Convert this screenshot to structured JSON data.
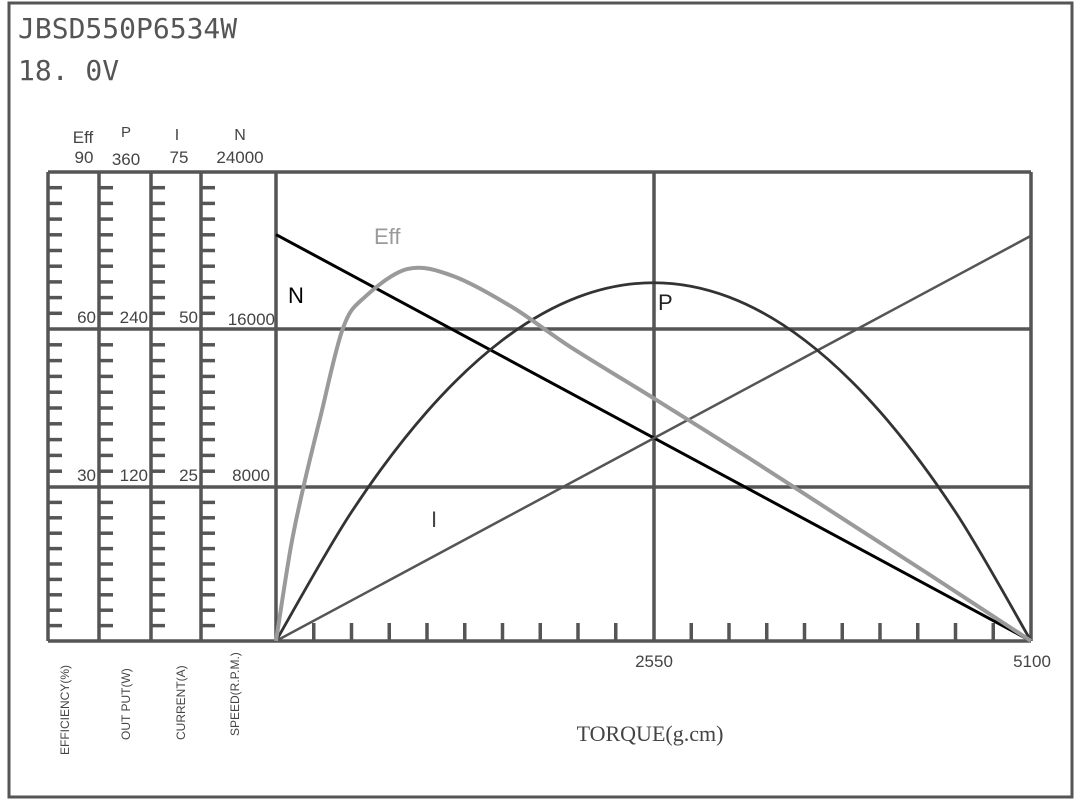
{
  "header": {
    "model": "JBSD550P6534W",
    "voltage": "18. 0V"
  },
  "chart_data": {
    "type": "line",
    "xlabel": "TORQUE(g.cm)",
    "xlim": [
      0,
      5100
    ],
    "x_ticks": [
      "2550",
      "5100"
    ],
    "grid": true,
    "axes": [
      {
        "id": "eff",
        "short": "Eff",
        "label": "EFFICIENCY(%)",
        "max": "90",
        "ticks": [
          "60",
          "30"
        ],
        "range": [
          0,
          90
        ]
      },
      {
        "id": "p",
        "short": "P",
        "label": "OUT PUT(W)",
        "max": "360",
        "ticks": [
          "240",
          "120"
        ],
        "range": [
          0,
          360
        ]
      },
      {
        "id": "i",
        "short": "I",
        "label": "CURRENT(A)",
        "max": "75",
        "ticks": [
          "50",
          "25"
        ],
        "range": [
          0,
          75
        ]
      },
      {
        "id": "n",
        "short": "N",
        "label": "SPEED(R.P.M.)",
        "max": "24000",
        "ticks": [
          "16000",
          "8000"
        ],
        "range": [
          0,
          24000
        ]
      }
    ],
    "series": [
      {
        "name": "N",
        "axis": "n",
        "color": "#000000",
        "x": [
          0,
          5100
        ],
        "y": [
          20800,
          0
        ]
      },
      {
        "name": "I",
        "axis": "i",
        "color": "#555555",
        "x": [
          0,
          5100
        ],
        "y": [
          0,
          64.8
        ]
      },
      {
        "name": "P",
        "axis": "p",
        "color": "#333333",
        "x": [
          0,
          510,
          1020,
          1530,
          2040,
          2550,
          3060,
          3570,
          4080,
          4590,
          5100
        ],
        "y": [
          0,
          99,
          176,
          231,
          264,
          275,
          264,
          231,
          176,
          99,
          0
        ]
      },
      {
        "name": "Eff",
        "axis": "eff",
        "color": "#9a9a9a",
        "x": [
          0,
          100,
          189,
          300,
          452,
          600,
          890,
          1200,
          1600,
          1990,
          2550,
          3200,
          3800,
          4400,
          5100
        ],
        "y": [
          0,
          18,
          30,
          43,
          60,
          66,
          71.4,
          70,
          64,
          56.4,
          46.6,
          35,
          24,
          13,
          0
        ]
      }
    ]
  }
}
